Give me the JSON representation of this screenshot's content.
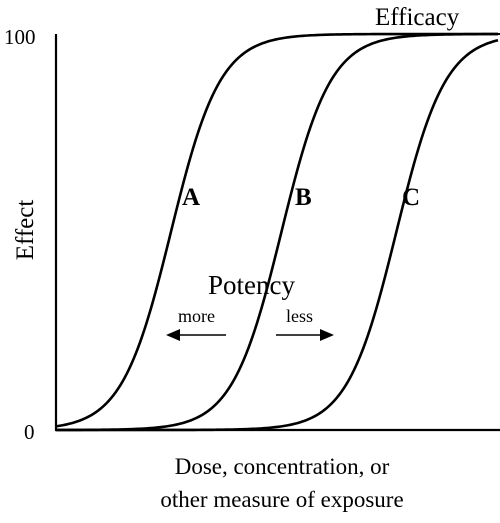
{
  "chart_data": {
    "type": "line",
    "title": "",
    "xlabel_lines": [
      "Dose, concentration, or",
      "other measure of exposure"
    ],
    "ylabel": "Effect",
    "y_ticks": [
      {
        "label": "0",
        "value": 0
      },
      {
        "label": "100",
        "value": 100
      }
    ],
    "ylim": [
      0,
      100
    ],
    "x_ticks_shown": false,
    "grid": false,
    "series": [
      {
        "name": "A",
        "curve": "sigmoid",
        "midpoint": 0.26,
        "steepness": 18,
        "max": 100
      },
      {
        "name": "B",
        "curve": "sigmoid",
        "midpoint": 0.51,
        "steepness": 18,
        "max": 100
      },
      {
        "name": "C",
        "curve": "sigmoid",
        "midpoint": 0.77,
        "steepness": 18,
        "max": 100
      }
    ],
    "annotations": {
      "efficacy": "Efficacy",
      "potency": "Potency",
      "more": "more",
      "less": "less"
    }
  }
}
